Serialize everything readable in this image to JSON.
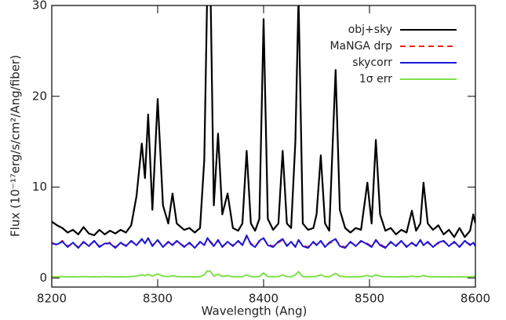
{
  "chart_data": {
    "type": "line",
    "x_label": "Wavelength (Ang)",
    "y_label": "Flux (10⁻¹⁷erg/s/cm²/Ang/fiber)",
    "xlim": [
      8200,
      8600
    ],
    "ylim": [
      -1,
      30
    ],
    "xticks": [
      8200,
      8300,
      8400,
      8500,
      8600
    ],
    "yticks": [
      0,
      10,
      20,
      30
    ],
    "legend": "upper right",
    "x": [
      8200,
      8205,
      8210,
      8215,
      8220,
      8225,
      8230,
      8235,
      8240,
      8245,
      8250,
      8255,
      8260,
      8265,
      8270,
      8275,
      8280,
      8285,
      8288,
      8291,
      8295,
      8300,
      8305,
      8310,
      8314,
      8318,
      8325,
      8330,
      8335,
      8340,
      8344,
      8347,
      8350,
      8353,
      8357,
      8361,
      8366,
      8371,
      8376,
      8380,
      8384,
      8388,
      8392,
      8396,
      8400,
      8404,
      8409,
      8414,
      8418,
      8422,
      8426,
      8430,
      8433,
      8437,
      8442,
      8447,
      8450,
      8454,
      8458,
      8462,
      8468,
      8472,
      8477,
      8482,
      8487,
      8492,
      8498,
      8502,
      8506,
      8510,
      8515,
      8520,
      8525,
      8530,
      8535,
      8540,
      8544,
      8548,
      8551,
      8555,
      8560,
      8565,
      8570,
      8575,
      8580,
      8585,
      8590,
      8595,
      8598,
      8600
    ],
    "series": [
      {
        "name": "obj+sky",
        "color": "#000000",
        "dash": "solid",
        "values": [
          6.2,
          5.8,
          5.5,
          5.0,
          5.3,
          4.8,
          5.6,
          4.9,
          4.7,
          5.3,
          4.8,
          5.2,
          4.9,
          5.3,
          5.0,
          5.8,
          9.0,
          14.8,
          11.0,
          18.0,
          7.5,
          19.7,
          8.0,
          6.0,
          9.3,
          6.0,
          5.3,
          5.5,
          5.0,
          5.5,
          13,
          33,
          31,
          8,
          15.9,
          7.0,
          9.3,
          5.5,
          5.2,
          6.0,
          14.0,
          6.0,
          5.2,
          6.5,
          28.5,
          6.5,
          5.3,
          6.0,
          14.0,
          6.0,
          5.5,
          15,
          31,
          6.0,
          5.3,
          5.5,
          7,
          13.5,
          6.0,
          5.2,
          22.9,
          7.5,
          5.5,
          5.0,
          5.5,
          5.3,
          10.5,
          6.0,
          15.2,
          7.0,
          5.2,
          5.5,
          4.8,
          5.3,
          5.0,
          7.4,
          5.2,
          6.0,
          10.5,
          6.0,
          5.3,
          5.8,
          4.8,
          5.3,
          4.5,
          5.5,
          4.5,
          5.2,
          7.0,
          6.0
        ]
      },
      {
        "name": "MaNGA drp",
        "color": "#e8231e",
        "dash": "dashed",
        "values": [
          3.9,
          3.6,
          4.1,
          3.5,
          3.8,
          3.4,
          3.9,
          3.6,
          4.0,
          3.5,
          3.7,
          3.9,
          3.4,
          3.8,
          3.6,
          4.0,
          3.7,
          4.2,
          3.9,
          4.3,
          3.6,
          4.1,
          3.5,
          3.9,
          3.7,
          4.0,
          3.5,
          3.8,
          3.4,
          3.9,
          3.7,
          4.3,
          4.0,
          3.6,
          4.1,
          3.5,
          3.9,
          3.6,
          4.0,
          3.7,
          4.5,
          3.8,
          3.5,
          4.0,
          4.3,
          3.7,
          3.5,
          3.9,
          4.2,
          3.6,
          3.9,
          3.5,
          4.1,
          3.6,
          3.4,
          3.9,
          3.7,
          4.0,
          3.5,
          3.8,
          4.2,
          3.6,
          3.4,
          3.9,
          3.6,
          4.0,
          3.8,
          3.5,
          4.1,
          3.7,
          3.4,
          3.9,
          3.6,
          4.0,
          3.5,
          3.8,
          3.6,
          4.1,
          3.7,
          3.9,
          3.5,
          3.8,
          4.0,
          3.6,
          3.9,
          3.5,
          4.0,
          3.7,
          3.8,
          3.6
        ]
      },
      {
        "name": "skycorr",
        "color": "#1a1adc",
        "dash": "solid",
        "values": [
          3.8,
          3.7,
          4.0,
          3.4,
          3.9,
          3.3,
          4.0,
          3.5,
          4.1,
          3.4,
          3.8,
          3.8,
          3.3,
          3.9,
          3.5,
          4.1,
          3.6,
          4.3,
          3.8,
          4.4,
          3.5,
          4.2,
          3.4,
          4.0,
          3.6,
          4.1,
          3.4,
          3.9,
          3.3,
          4.0,
          3.6,
          4.4,
          3.9,
          3.5,
          4.2,
          3.4,
          4.0,
          3.5,
          4.1,
          3.6,
          4.7,
          3.7,
          3.4,
          4.1,
          4.4,
          3.6,
          3.4,
          4.0,
          4.3,
          3.5,
          4.0,
          3.4,
          4.2,
          3.5,
          3.3,
          4.0,
          3.6,
          4.1,
          3.4,
          3.9,
          4.3,
          3.5,
          3.3,
          4.0,
          3.5,
          4.1,
          3.7,
          3.4,
          4.2,
          3.6,
          3.3,
          4.0,
          3.5,
          4.1,
          3.4,
          3.9,
          3.5,
          4.2,
          3.6,
          4.0,
          3.4,
          3.9,
          4.1,
          3.5,
          4.0,
          3.4,
          4.1,
          3.6,
          3.9,
          3.5
        ]
      },
      {
        "name": "1σ err",
        "color": "#7ee04a",
        "dash": "solid",
        "values": [
          0.15,
          0.12,
          0.15,
          0.12,
          0.14,
          0.12,
          0.15,
          0.12,
          0.14,
          0.12,
          0.15,
          0.13,
          0.12,
          0.14,
          0.12,
          0.15,
          0.2,
          0.35,
          0.25,
          0.4,
          0.2,
          0.45,
          0.2,
          0.15,
          0.25,
          0.15,
          0.13,
          0.14,
          0.12,
          0.14,
          0.35,
          0.8,
          0.7,
          0.2,
          0.4,
          0.18,
          0.25,
          0.14,
          0.13,
          0.15,
          0.35,
          0.15,
          0.13,
          0.16,
          0.55,
          0.16,
          0.13,
          0.15,
          0.35,
          0.15,
          0.14,
          0.35,
          0.7,
          0.15,
          0.13,
          0.14,
          0.18,
          0.35,
          0.15,
          0.13,
          0.5,
          0.2,
          0.14,
          0.12,
          0.14,
          0.13,
          0.28,
          0.15,
          0.35,
          0.18,
          0.13,
          0.14,
          0.12,
          0.13,
          0.12,
          0.2,
          0.13,
          0.15,
          0.28,
          0.15,
          0.13,
          0.14,
          0.12,
          0.13,
          0.11,
          0.14,
          0.11,
          0.13,
          0.18,
          0.15
        ]
      }
    ]
  }
}
